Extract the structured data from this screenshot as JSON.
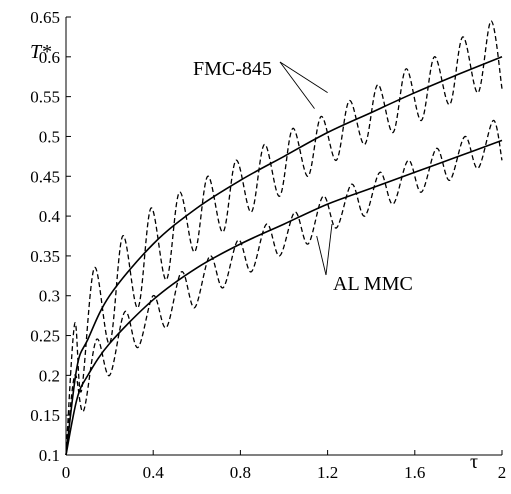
{
  "chart_data": {
    "type": "line",
    "title": "",
    "xlabel": "τ",
    "ylabel": "T*",
    "xlim": [
      0,
      2
    ],
    "ylim": [
      0.1,
      0.65
    ],
    "grid": false,
    "x_ticks": [
      "0",
      "0.4",
      "0.8",
      "1.2",
      "1.6",
      "2"
    ],
    "y_ticks": [
      "0.1",
      "0.15",
      "0.2",
      "0.25",
      "0.3",
      "0.35",
      "0.4",
      "0.45",
      "0.5",
      "0.55",
      "0.6",
      "0.65"
    ],
    "series": [
      {
        "style": "solid",
        "x": [
          0,
          0.05,
          0.1,
          0.2,
          0.4,
          0.6,
          0.8,
          1.0,
          1.2,
          1.4,
          1.6,
          1.8,
          2.0
        ],
        "y": [
          0.1,
          0.21,
          0.245,
          0.3,
          0.365,
          0.41,
          0.445,
          0.475,
          0.505,
          0.53,
          0.555,
          0.578,
          0.6
        ]
      },
      {
        "style": "dashed",
        "x": [
          0,
          0.04,
          0.07,
          0.13,
          0.2,
          0.26,
          0.33,
          0.39,
          0.46,
          0.52,
          0.59,
          0.65,
          0.72,
          0.78,
          0.85,
          0.91,
          0.98,
          1.04,
          1.11,
          1.17,
          1.24,
          1.3,
          1.37,
          1.43,
          1.5,
          1.56,
          1.63,
          1.69,
          1.76,
          1.82,
          1.89,
          1.95,
          2.0
        ],
        "y": [
          0.1,
          0.265,
          0.18,
          0.335,
          0.24,
          0.375,
          0.285,
          0.41,
          0.32,
          0.43,
          0.355,
          0.45,
          0.38,
          0.47,
          0.405,
          0.49,
          0.425,
          0.51,
          0.45,
          0.525,
          0.47,
          0.545,
          0.49,
          0.565,
          0.505,
          0.585,
          0.52,
          0.6,
          0.54,
          0.625,
          0.555,
          0.645,
          0.56
        ]
      },
      {
        "style": "solid",
        "x": [
          0,
          0.05,
          0.1,
          0.2,
          0.4,
          0.6,
          0.8,
          1.0,
          1.2,
          1.4,
          1.6,
          1.8,
          2.0
        ],
        "y": [
          0.1,
          0.17,
          0.2,
          0.24,
          0.295,
          0.335,
          0.365,
          0.39,
          0.415,
          0.435,
          0.455,
          0.475,
          0.495
        ]
      },
      {
        "style": "dashed",
        "x": [
          0,
          0.04,
          0.08,
          0.14,
          0.2,
          0.27,
          0.33,
          0.4,
          0.46,
          0.53,
          0.59,
          0.66,
          0.72,
          0.79,
          0.85,
          0.92,
          0.98,
          1.05,
          1.11,
          1.18,
          1.24,
          1.31,
          1.37,
          1.44,
          1.5,
          1.57,
          1.63,
          1.7,
          1.76,
          1.83,
          1.89,
          1.96,
          2.0
        ],
        "y": [
          0.1,
          0.2,
          0.155,
          0.245,
          0.2,
          0.28,
          0.235,
          0.3,
          0.26,
          0.33,
          0.285,
          0.35,
          0.31,
          0.37,
          0.33,
          0.39,
          0.35,
          0.405,
          0.365,
          0.425,
          0.385,
          0.44,
          0.4,
          0.455,
          0.415,
          0.47,
          0.43,
          0.485,
          0.445,
          0.5,
          0.46,
          0.52,
          0.47
        ]
      }
    ],
    "annotations": [
      {
        "text": "FMC-845",
        "target_x": [
          1.14,
          1.2
        ],
        "target_y": [
          0.535,
          0.555
        ]
      },
      {
        "text": "AL MMC",
        "target_x": [
          1.15,
          1.22
        ],
        "target_y": [
          0.375,
          0.39
        ]
      }
    ]
  }
}
